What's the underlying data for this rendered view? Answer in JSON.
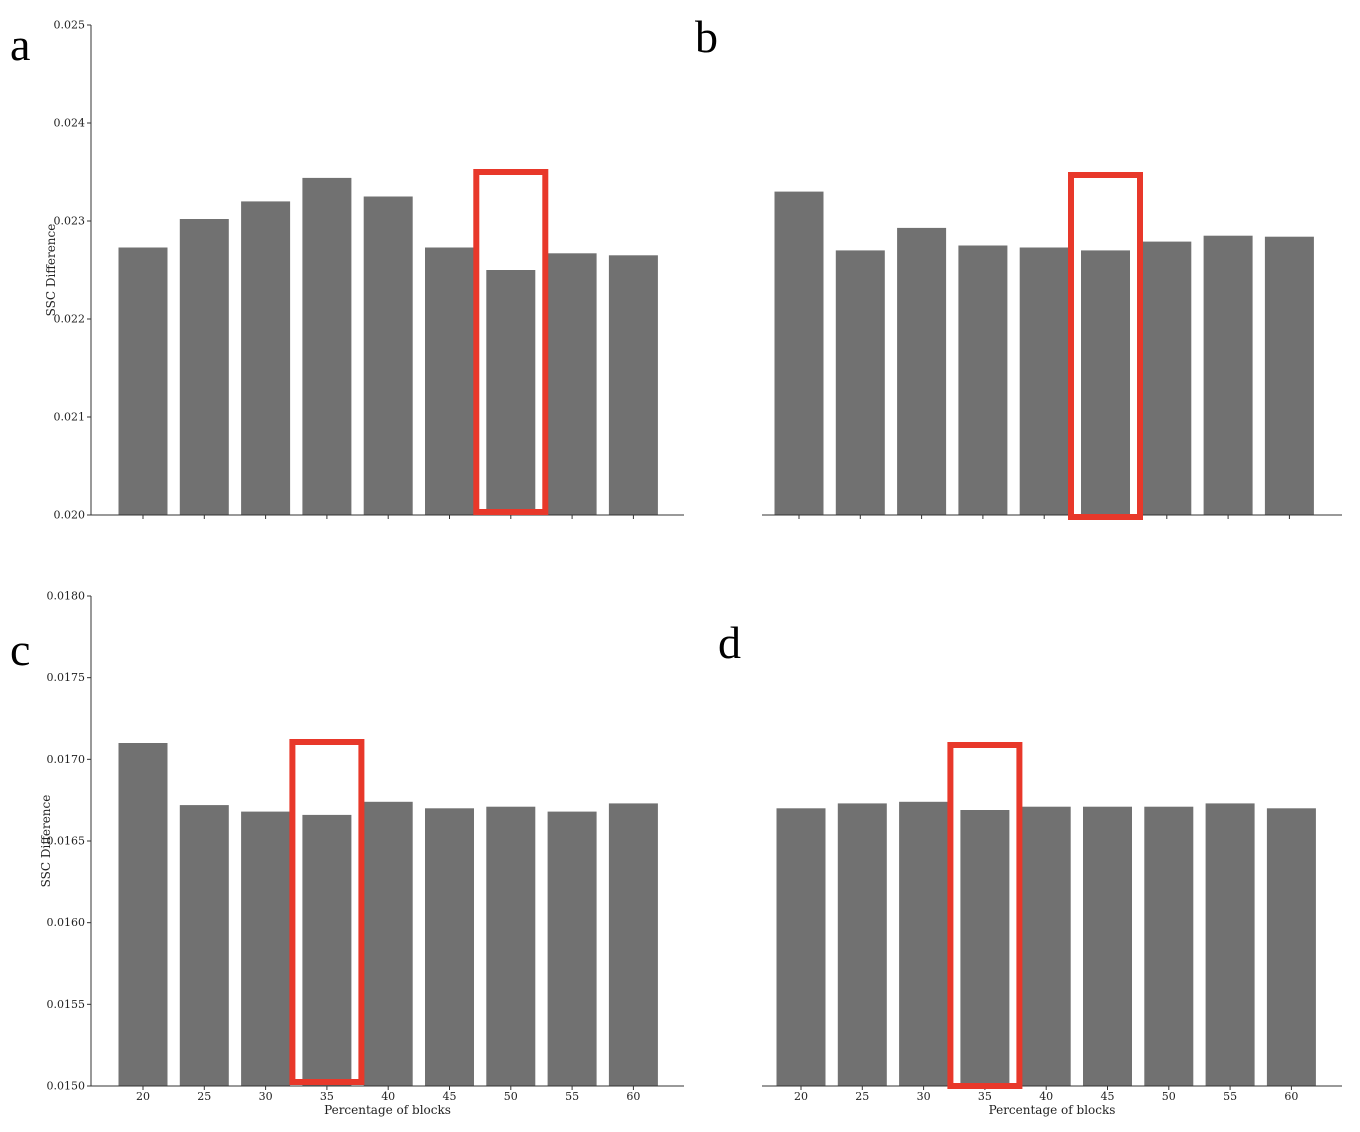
{
  "colors": {
    "bar": "#717171",
    "highlight": "#e8382a",
    "axis": "#333333"
  },
  "chart_data": [
    {
      "panel": "a",
      "type": "bar",
      "categories": [
        "20",
        "25",
        "30",
        "35",
        "40",
        "45",
        "50",
        "55",
        "60"
      ],
      "values": [
        0.02273,
        0.02302,
        0.0232,
        0.02344,
        0.02325,
        0.02273,
        0.0225,
        0.02267,
        0.02265
      ],
      "ylim": [
        0.02,
        0.025
      ],
      "yticks": [
        "0.020",
        "0.021",
        "0.022",
        "0.023",
        "0.024",
        "0.025"
      ],
      "ylabel": "SSC Difference",
      "xlabel": "",
      "show_yaxis": true,
      "show_xticklabels": false,
      "highlight_category": "50",
      "grid": false
    },
    {
      "panel": "b",
      "type": "bar",
      "categories": [
        "20",
        "25",
        "30",
        "35",
        "40",
        "45",
        "50",
        "55",
        "60"
      ],
      "values": [
        0.0233,
        0.0227,
        0.02293,
        0.02275,
        0.02273,
        0.0227,
        0.02279,
        0.02285,
        0.02284
      ],
      "ylim": [
        0.02,
        0.025
      ],
      "yticks": [],
      "ylabel": "",
      "xlabel": "",
      "show_yaxis": false,
      "show_xticklabels": false,
      "highlight_category": "45",
      "grid": false
    },
    {
      "panel": "c",
      "type": "bar",
      "categories": [
        "20",
        "25",
        "30",
        "35",
        "40",
        "45",
        "50",
        "55",
        "60"
      ],
      "values": [
        0.0171,
        0.01672,
        0.01668,
        0.01666,
        0.01674,
        0.0167,
        0.01671,
        0.01668,
        0.01673
      ],
      "ylim": [
        0.015,
        0.018
      ],
      "yticks": [
        "0.0150",
        "0.0155",
        "0.0160",
        "0.0165",
        "0.0170",
        "0.0175",
        "0.0180"
      ],
      "ylabel": "SSC Difference",
      "xlabel": "Percentage of blocks",
      "show_yaxis": true,
      "show_xticklabels": true,
      "highlight_category": "35",
      "grid": false
    },
    {
      "panel": "d",
      "type": "bar",
      "categories": [
        "20",
        "25",
        "30",
        "35",
        "40",
        "45",
        "50",
        "55",
        "60"
      ],
      "values": [
        0.0167,
        0.01673,
        0.01674,
        0.01669,
        0.01671,
        0.01671,
        0.01671,
        0.01673,
        0.0167
      ],
      "ylim": [
        0.015,
        0.018
      ],
      "yticks": [],
      "ylabel": "",
      "xlabel": "Percentage of blocks",
      "show_yaxis": false,
      "show_xticklabels": true,
      "highlight_category": "35",
      "grid": false
    }
  ]
}
